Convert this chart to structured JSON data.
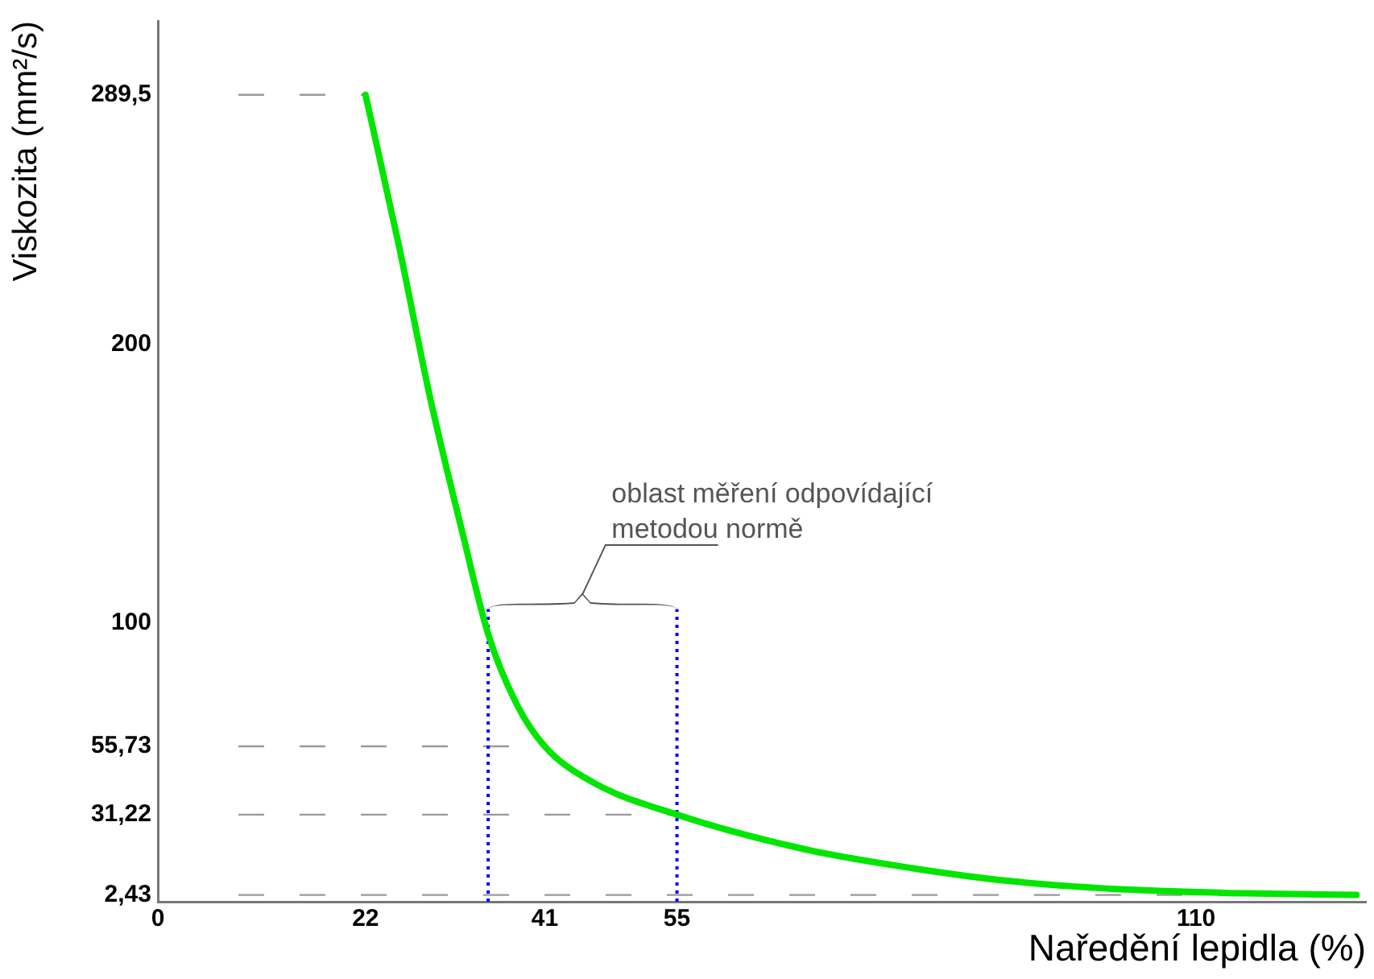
{
  "chart_data": {
    "type": "line",
    "xlabel": "Naředění lepidla (%)",
    "ylabel": "Viskozita (mm²/s)",
    "series": [
      {
        "color": "#00e600",
        "x": [
          22,
          25.5,
          28.9,
          32.3,
          35,
          38,
          41,
          46,
          55,
          68.7,
          80,
          90,
          103,
          115,
          127
        ],
        "values": [
          289.5,
          236,
          180,
          132,
          96,
          71,
          55.73,
          43,
          31.22,
          18.7,
          12,
          7.5,
          4.3,
          3,
          2.43
        ]
      }
    ],
    "xlim": [
      0,
      128
    ],
    "xticks": [
      0,
      22,
      41,
      55,
      110
    ],
    "ylim": [
      0,
      316
    ],
    "yticks": [
      {
        "value": 2.43,
        "label": "2,43"
      },
      {
        "value": 31.22,
        "label": "31,22"
      },
      {
        "value": 55.73,
        "label": "55,73"
      },
      100,
      200,
      {
        "value": 289.5,
        "label": "289,5"
      }
    ],
    "ref_lines": [
      {
        "axis": "y",
        "value": 289.5,
        "color": "#999999",
        "line_style": "dashed"
      },
      {
        "axis": "y",
        "value": 55.73,
        "color": "#999999",
        "line_style": "dashed"
      },
      {
        "axis": "y",
        "value": 31.22,
        "color": "#999999",
        "line_style": "dashed"
      },
      {
        "axis": "y",
        "value": 2.43,
        "color": "#999999",
        "line_style": "dashed"
      },
      {
        "axis": "x",
        "value": 35,
        "color": "#0000ff",
        "line_style": "dotted"
      },
      {
        "axis": "x",
        "value": 55,
        "color": "#0000ff",
        "line_style": "dotted"
      }
    ],
    "annotations": [
      "oblast měření odpovídající metodou normě"
    ],
    "grid": false,
    "legend": false,
    "marker": "none",
    "line_style": "solid"
  }
}
